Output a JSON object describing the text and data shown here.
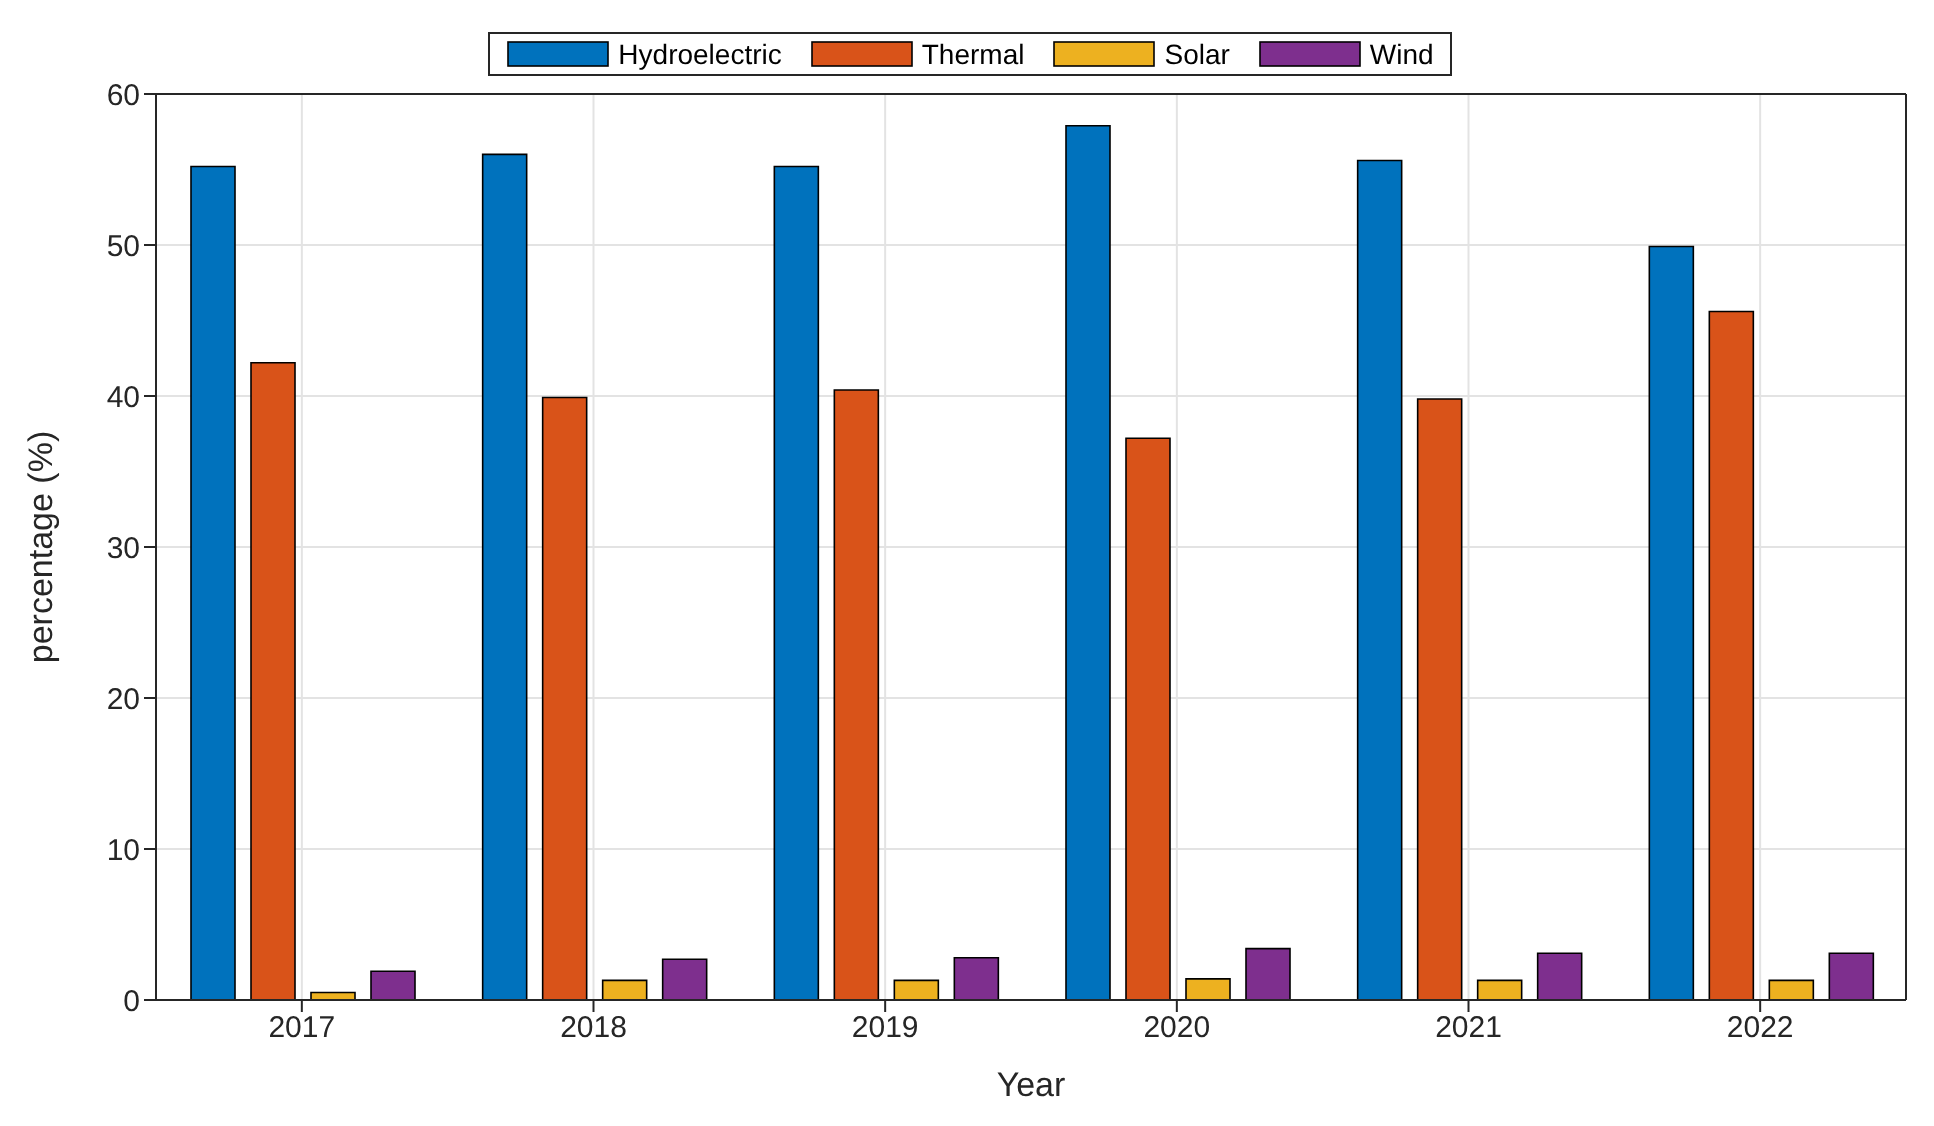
{
  "chart_data": {
    "type": "bar",
    "xlabel": "Year",
    "ylabel": "percentage (%)",
    "categories": [
      "2017",
      "2018",
      "2019",
      "2020",
      "2021",
      "2022"
    ],
    "series": [
      {
        "name": "Hydroelectric",
        "color": "#0072bd",
        "values": [
          55.2,
          56.0,
          55.2,
          57.9,
          55.6,
          49.9
        ]
      },
      {
        "name": "Thermal",
        "color": "#d95319",
        "values": [
          42.2,
          39.9,
          40.4,
          37.2,
          39.8,
          45.6
        ]
      },
      {
        "name": "Solar",
        "color": "#edb120",
        "values": [
          0.5,
          1.3,
          1.3,
          1.4,
          1.3,
          1.3
        ]
      },
      {
        "name": "Wind",
        "color": "#7e2f8e",
        "values": [
          1.9,
          2.7,
          2.8,
          3.4,
          3.1,
          3.1
        ]
      }
    ],
    "ylim": [
      0,
      60
    ],
    "yticks": [
      0,
      10,
      20,
      30,
      40,
      50,
      60
    ],
    "grid": true,
    "legend": "top"
  }
}
